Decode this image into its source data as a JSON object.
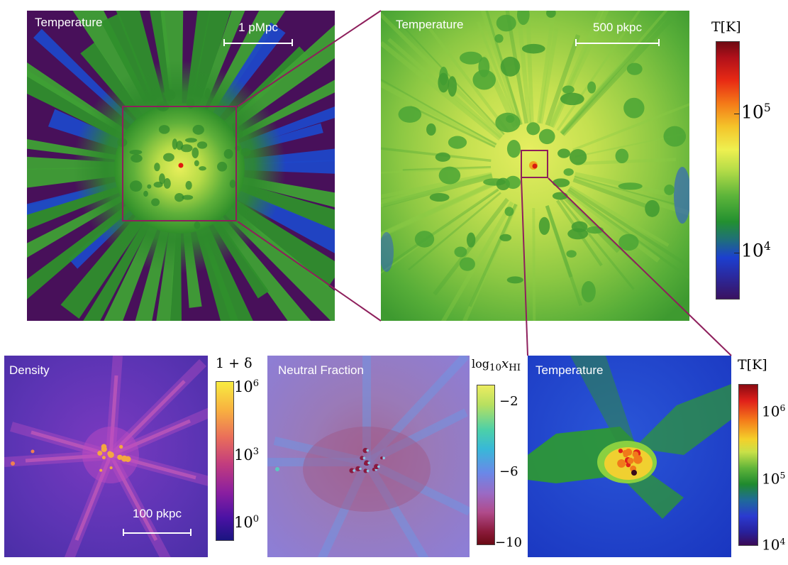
{
  "top_left": {
    "label": "Temperature",
    "scale_label": "1 pMpc"
  },
  "top_right": {
    "label": "Temperature",
    "scale_label": "500 pkpc"
  },
  "top_colorbar": {
    "title": "T[K]",
    "tick_upper_base": "10",
    "tick_upper_exp": "5",
    "tick_lower_base": "10",
    "tick_lower_exp": "4"
  },
  "density_panel": {
    "label": "Density",
    "scale_label": "100 pkpc"
  },
  "density_colorbar": {
    "title": "1 + δ",
    "ticks": [
      {
        "base": "10",
        "exp": "6"
      },
      {
        "base": "10",
        "exp": "3"
      },
      {
        "base": "10",
        "exp": "0"
      }
    ]
  },
  "neutral_panel": {
    "label": "Neutral Fraction"
  },
  "neutral_colorbar": {
    "title_log": "log",
    "title_sub": "10",
    "title_var": "x",
    "title_var_sub": "HI",
    "ticks": [
      "−2",
      "−6",
      "−10"
    ]
  },
  "temp_zoom_panel": {
    "label": "Temperature"
  },
  "temp_zoom_colorbar": {
    "title": "T[K]",
    "ticks": [
      {
        "base": "10",
        "exp": "6"
      },
      {
        "base": "10",
        "exp": "5"
      },
      {
        "base": "10",
        "exp": "4"
      }
    ]
  },
  "colors": {
    "connector": "#8e1f5c",
    "background_purple": "#48105a",
    "density_bg": "#5a2fb0",
    "neutral_bg": "#9b73c8",
    "zoom_bg": "#1e3ec8"
  }
}
